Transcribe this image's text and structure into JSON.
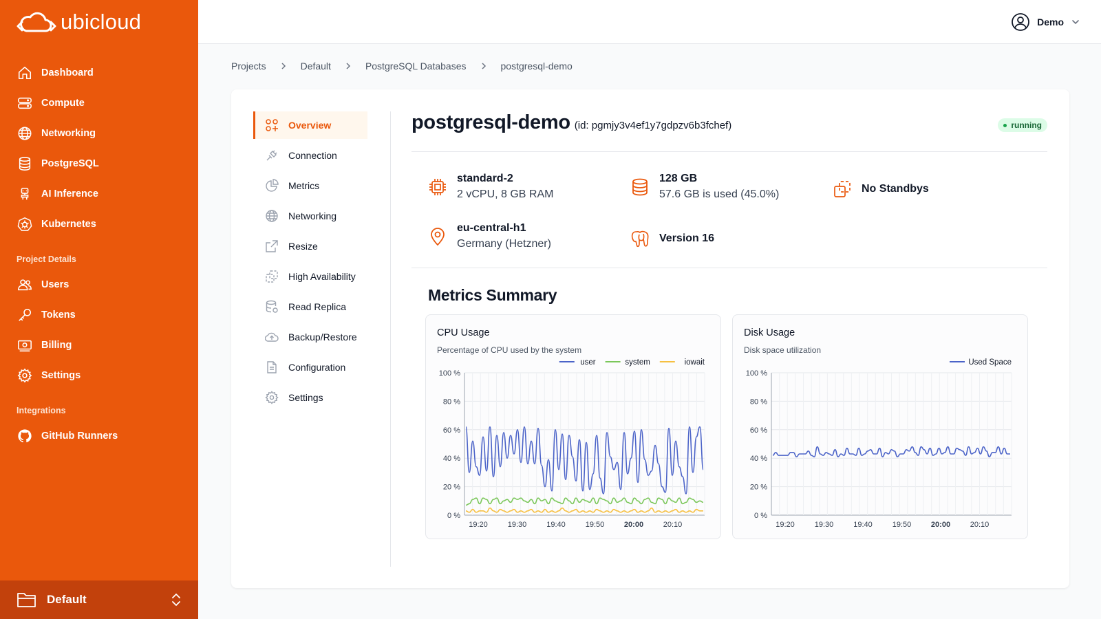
{
  "brand": {
    "name": "ubicloud"
  },
  "sidebar": {
    "items": [
      {
        "label": "Dashboard",
        "icon": "home-icon"
      },
      {
        "label": "Compute",
        "icon": "server-icon"
      },
      {
        "label": "Networking",
        "icon": "globe-icon"
      },
      {
        "label": "PostgreSQL",
        "icon": "database-icon"
      },
      {
        "label": "AI Inference",
        "icon": "robot-icon"
      },
      {
        "label": "Kubernetes",
        "icon": "kubernetes-icon"
      }
    ],
    "project_section": "Project Details",
    "project_items": [
      {
        "label": "Users",
        "icon": "users-icon"
      },
      {
        "label": "Tokens",
        "icon": "key-icon"
      },
      {
        "label": "Billing",
        "icon": "billing-icon"
      },
      {
        "label": "Settings",
        "icon": "gear-icon"
      }
    ],
    "integrations_section": "Integrations",
    "integration_items": [
      {
        "label": "GitHub Runners",
        "icon": "github-icon"
      }
    ],
    "project_switcher": {
      "label": "Default",
      "icon": "folder-icon"
    }
  },
  "topbar": {
    "user": "Demo"
  },
  "breadcrumb": [
    "Projects",
    "Default",
    "PostgreSQL Databases",
    "postgresql-demo"
  ],
  "subnav": [
    {
      "label": "Overview",
      "icon": "overview-icon",
      "active": true
    },
    {
      "label": "Connection",
      "icon": "plug-icon"
    },
    {
      "label": "Metrics",
      "icon": "pie-chart-icon"
    },
    {
      "label": "Networking",
      "icon": "globe-icon"
    },
    {
      "label": "Resize",
      "icon": "resize-icon"
    },
    {
      "label": "High Availability",
      "icon": "copy-icon"
    },
    {
      "label": "Read Replica",
      "icon": "database-replica-icon"
    },
    {
      "label": "Backup/Restore",
      "icon": "cloud-upload-icon"
    },
    {
      "label": "Configuration",
      "icon": "document-icon"
    },
    {
      "label": "Settings",
      "icon": "gear-icon"
    }
  ],
  "resource": {
    "name": "postgresql-demo",
    "id_text": "(id: pgmjy3v4ef1y7gdpzv6b3fchef)",
    "status": "running",
    "specs": {
      "size": {
        "name": "standard-2",
        "desc": "2 vCPU, 8 GB RAM"
      },
      "storage": {
        "name": "128 GB",
        "desc": "57.6 GB is used (45.0%)"
      },
      "standby": {
        "name": "No Standbys"
      },
      "location": {
        "name": "eu-central-h1",
        "desc": "Germany (Hetzner)"
      },
      "version": {
        "name": "Version 16"
      }
    }
  },
  "metrics": {
    "title": "Metrics Summary",
    "cpu": {
      "title": "CPU Usage",
      "subtitle": "Percentage of CPU used by the system"
    },
    "disk": {
      "title": "Disk Usage",
      "subtitle": "Disk space utilization"
    }
  },
  "colors": {
    "accent": "#ea580c",
    "user": "#4b63c8",
    "system": "#7bc75a",
    "iowait": "#f6c042",
    "used": "#4b63c8"
  },
  "chart_data": [
    {
      "type": "line",
      "title": "CPU Usage",
      "subtitle": "Percentage of CPU used by the system",
      "ylim": [
        0,
        100
      ],
      "yticks": [
        "0 %",
        "20 %",
        "40 %",
        "60 %",
        "80 %",
        "100 %"
      ],
      "xticks": [
        "19:20",
        "19:30",
        "19:40",
        "19:50",
        "20:00",
        "20:10"
      ],
      "legend": "top-right",
      "series": [
        {
          "name": "user",
          "values": [
            62,
            30,
            52,
            34,
            28,
            55,
            31,
            62,
            27,
            56,
            34,
            58,
            40,
            56,
            43,
            60,
            37,
            62,
            36,
            52,
            36,
            61,
            35,
            20,
            39,
            17,
            60,
            32,
            57,
            25,
            56,
            41,
            24,
            53,
            17,
            51,
            18,
            29,
            56,
            26,
            15,
            58,
            41,
            32,
            37,
            18,
            58,
            29,
            40,
            59,
            23,
            60,
            39,
            28,
            31,
            49,
            36,
            20,
            16,
            61,
            28,
            52,
            34,
            27,
            15,
            62,
            30,
            55,
            62,
            32
          ]
        },
        {
          "name": "system",
          "values": [
            7,
            8,
            11,
            12,
            8,
            12,
            11,
            8,
            11,
            12,
            8,
            10,
            11,
            9,
            12,
            11,
            12,
            10,
            9,
            11,
            8,
            12,
            10,
            11,
            8,
            12,
            10,
            9,
            8,
            12,
            10,
            8,
            12,
            9,
            11,
            10,
            9,
            12,
            8,
            12,
            11,
            10,
            8,
            12,
            9,
            10,
            12,
            9,
            8,
            12,
            10,
            8,
            11,
            12,
            9,
            8,
            12,
            11,
            8,
            12,
            10,
            9,
            12,
            8,
            9,
            12,
            11,
            9,
            10,
            9
          ]
        },
        {
          "name": "iowait",
          "values": [
            3,
            2,
            4,
            2,
            3,
            3,
            2,
            5,
            3,
            2,
            4,
            3,
            2,
            3,
            4,
            2,
            3,
            2,
            3,
            4,
            2,
            3,
            2,
            4,
            2,
            3,
            2,
            3,
            5,
            3,
            2,
            3,
            4,
            2,
            3,
            2,
            3,
            2,
            4,
            3,
            2,
            3,
            2,
            4,
            3,
            2,
            3,
            2,
            3,
            4,
            2,
            3,
            2,
            3,
            5,
            2,
            3,
            2,
            3,
            2,
            3,
            4,
            2,
            3,
            2,
            3,
            2,
            4,
            3,
            3
          ]
        }
      ]
    },
    {
      "type": "line",
      "title": "Disk Usage",
      "subtitle": "Disk space utilization",
      "ylim": [
        0,
        100
      ],
      "yticks": [
        "0 %",
        "20 %",
        "40 %",
        "60 %",
        "80 %",
        "100 %"
      ],
      "xticks": [
        "19:20",
        "19:30",
        "19:40",
        "19:50",
        "20:00",
        "20:10"
      ],
      "legend": "top-right",
      "series": [
        {
          "name": "Used Space",
          "values": [
            42,
            44,
            42,
            42,
            42,
            42,
            44,
            44,
            41,
            43,
            43,
            43,
            45,
            42,
            41,
            48,
            43,
            42,
            44,
            43,
            42,
            46,
            41,
            43,
            42,
            47,
            43,
            43,
            42,
            47,
            42,
            43,
            45,
            46,
            43,
            43,
            47,
            41,
            44,
            43,
            46,
            45,
            41,
            43,
            43,
            46,
            45,
            48,
            44,
            42,
            48,
            46,
            43,
            47,
            42,
            43,
            47,
            43,
            44,
            48,
            43,
            43,
            47,
            46,
            45,
            42,
            48,
            43,
            44,
            47,
            43,
            48,
            45,
            41,
            44,
            44,
            48,
            43,
            47,
            43,
            43
          ]
        }
      ]
    }
  ]
}
